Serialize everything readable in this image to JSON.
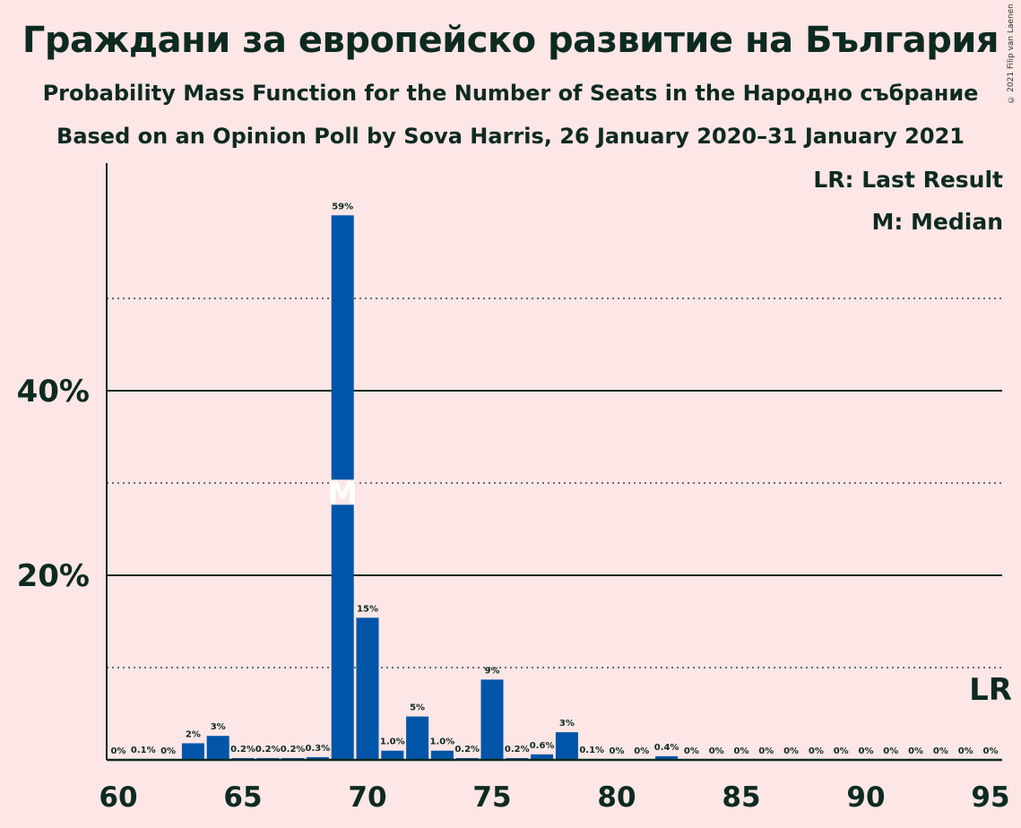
{
  "title": "Граждани за европейско развитие на България",
  "subtitle": "Probability Mass Function for the Number of Seats in the Народно събрание",
  "subtitle2": "Based on an Opinion Poll by Sova Harris, 26 January 2020–31 January 2021",
  "copyright": "© 2021 Filip van Laenen",
  "legend": {
    "lr": "LR: Last Result",
    "median": "M: Median"
  },
  "colors": {
    "bar": "#0055a8",
    "background": "#fde6e6",
    "text": "#0d2a21"
  },
  "chart_data": {
    "type": "bar",
    "x": [
      60,
      61,
      62,
      63,
      64,
      65,
      66,
      67,
      68,
      69,
      70,
      71,
      72,
      73,
      74,
      75,
      76,
      77,
      78,
      79,
      80,
      81,
      82,
      83,
      84,
      85,
      86,
      87,
      88,
      89,
      90,
      91,
      92,
      93,
      94,
      95
    ],
    "values": [
      0,
      0.1,
      0,
      1.8,
      2.6,
      0.2,
      0.2,
      0.2,
      0.3,
      59,
      15.4,
      1.0,
      4.7,
      1.0,
      0.2,
      8.7,
      0.2,
      0.6,
      3,
      0.1,
      0,
      0,
      0.4,
      0,
      0,
      0,
      0,
      0,
      0,
      0,
      0,
      0,
      0,
      0,
      0,
      0
    ],
    "labels": [
      "0%",
      "0.1%",
      "0%",
      "2%",
      "3%",
      "0.2%",
      "0.2%",
      "0.2%",
      "0.3%",
      "59%",
      "15%",
      "1.0%",
      "5%",
      "1.0%",
      "0.2%",
      "9%",
      "0.2%",
      "0.6%",
      "3%",
      "0.1%",
      "0%",
      "0%",
      "0.4%",
      "0%",
      "0%",
      "0%",
      "0%",
      "0%",
      "0%",
      "0%",
      "0%",
      "0%",
      "0%",
      "0%",
      "0%",
      "0%"
    ],
    "xticks": [
      60,
      65,
      70,
      75,
      80,
      85,
      90,
      95
    ],
    "yticks": [
      {
        "value": 20,
        "label": "20%"
      },
      {
        "value": 40,
        "label": "40%"
      }
    ],
    "gridlines_dotted": [
      10,
      30,
      50
    ],
    "ylim": [
      0,
      64
    ],
    "median": 69,
    "median_label": "M",
    "last_result": 95,
    "last_result_label": "LR"
  }
}
